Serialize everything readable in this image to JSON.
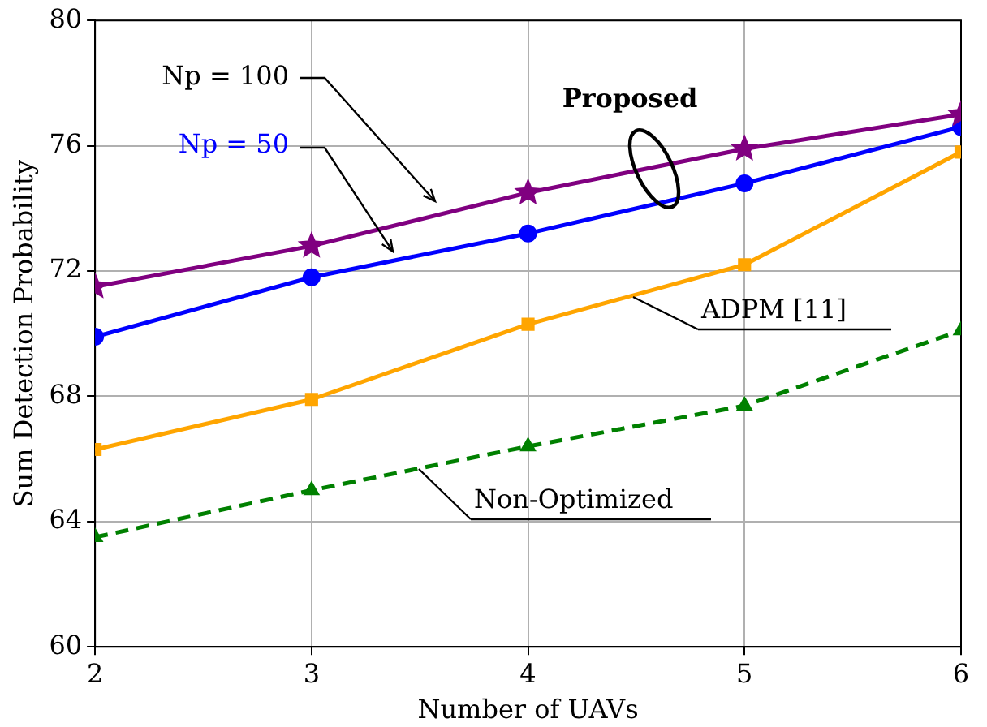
{
  "chart_data": {
    "type": "line",
    "xlabel": "Number of UAVs",
    "ylabel": "Sum Detection Probability",
    "x": [
      2,
      3,
      4,
      5,
      6
    ],
    "xlim": [
      2,
      6
    ],
    "xticks": [
      2,
      3,
      4,
      5,
      6
    ],
    "ylim": [
      60,
      80
    ],
    "yticks": [
      60,
      64,
      68,
      72,
      76,
      80
    ],
    "grid": true,
    "legend": false,
    "series": [
      {
        "name": "Np = 100",
        "color": "#800080",
        "marker": "star",
        "line_style": "solid",
        "values": [
          71.5,
          72.8,
          74.5,
          75.9,
          77.0
        ]
      },
      {
        "name": "Np = 50",
        "color": "#0000ff",
        "marker": "circle",
        "line_style": "solid",
        "values": [
          69.9,
          71.8,
          73.2,
          74.8,
          76.6
        ]
      },
      {
        "name": "ADPM [11]",
        "color": "#ffa500",
        "marker": "square",
        "line_style": "solid",
        "values": [
          66.3,
          67.9,
          70.3,
          72.2,
          75.8
        ]
      },
      {
        "name": "Non-Optimized",
        "color": "#008000",
        "marker": "triangle",
        "line_style": "dashed",
        "values": [
          63.5,
          65.0,
          66.4,
          67.7,
          70.1
        ]
      }
    ],
    "annotations": [
      "Proposed"
    ]
  }
}
